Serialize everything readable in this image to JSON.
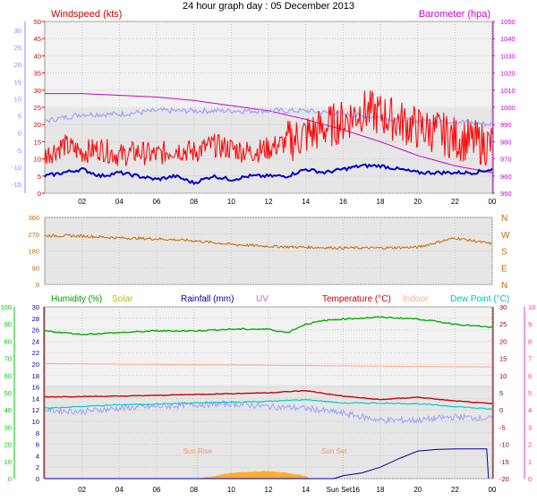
{
  "title": "24 hour graph day : 05 December 2013",
  "colors": {
    "windspeed": "#ff0000",
    "windgust": "#ff0000",
    "windavg": "#0000cc",
    "barometer": "#cc00cc",
    "temp_axis_line": "#a0a0ff",
    "direction": "#cc6600",
    "humidity": "#00b000",
    "solar": "#cccc00",
    "rainfall": "#000099",
    "uv": "#cc66cc",
    "temperature": "#cc0000",
    "indoor": "#ffaa88",
    "dewpoint": "#00cccc",
    "chill": "#a0a0ff",
    "solar_fill": "#ffaa33",
    "axis_left_blue": "#8888ff",
    "axis_green": "#00cc00",
    "axis_pink": "#ff3399",
    "axis_right_red": "#990000",
    "plot_bg": "#e6e6e6"
  },
  "chart_data": [
    {
      "type": "line",
      "panel": "wind-barometer",
      "labels": {
        "left": "Windspeed (kts)",
        "right": "Barometer (hpa)"
      },
      "x_ticks": [
        "02",
        "04",
        "06",
        "08",
        "10",
        "12",
        "14",
        "16",
        "18",
        "20",
        "22",
        "00"
      ],
      "y_left": {
        "ticks": [
          "0",
          "5",
          "10",
          "15",
          "20",
          "25",
          "30",
          "35",
          "40",
          "45",
          "50"
        ],
        "ylim": [
          0,
          50
        ]
      },
      "y_left_outer": {
        "ticks": [
          "-15",
          "-10",
          "-5",
          "0",
          "5",
          "10",
          "15",
          "20",
          "25",
          "30"
        ]
      },
      "y_right": {
        "ticks": [
          "950",
          "960",
          "970",
          "980",
          "990",
          "1000",
          "1010",
          "1020",
          "1030",
          "1040",
          "1050"
        ],
        "ylim": [
          950,
          1050
        ]
      },
      "series": [
        {
          "key": "gust",
          "x": [
            0,
            1,
            2,
            3,
            4,
            5,
            6,
            7,
            8,
            9,
            10,
            11,
            12,
            13,
            14,
            15,
            16,
            17,
            18,
            19,
            20,
            21,
            22,
            23,
            24
          ],
          "values": [
            11,
            14,
            12,
            13,
            11,
            12,
            11,
            13,
            12,
            14,
            13,
            12,
            13,
            15,
            17,
            19,
            21,
            24,
            23,
            21,
            19,
            18,
            16,
            15,
            14
          ]
        },
        {
          "key": "avg",
          "x": [
            0,
            1,
            2,
            3,
            4,
            5,
            6,
            7,
            8,
            9,
            10,
            11,
            12,
            13,
            14,
            15,
            16,
            17,
            18,
            19,
            20,
            21,
            22,
            23,
            24
          ],
          "values": [
            5,
            6,
            7,
            5,
            6,
            5,
            4,
            5,
            3,
            5,
            4,
            5,
            5,
            5,
            7,
            6,
            7,
            8,
            8,
            7,
            6,
            6,
            6,
            6,
            7
          ]
        },
        {
          "key": "baro",
          "x": [
            0,
            2,
            4,
            6,
            8,
            10,
            12,
            14,
            16,
            18,
            20,
            22,
            24
          ],
          "values": [
            1008,
            1008,
            1007,
            1006,
            1004,
            1001,
            998,
            993,
            987,
            980,
            972,
            966,
            962
          ]
        },
        {
          "key": "chill",
          "x": [
            0,
            2,
            4,
            6,
            8,
            10,
            12,
            14,
            16,
            18,
            20,
            22,
            24
          ],
          "values": [
            21,
            23,
            23,
            24,
            24,
            24,
            24,
            24,
            23,
            22,
            21,
            21,
            20
          ]
        }
      ]
    },
    {
      "type": "line",
      "panel": "wind-direction",
      "x_ticks": [
        "02",
        "04",
        "06",
        "08",
        "10",
        "12",
        "14",
        "16",
        "18",
        "20",
        "22",
        "00"
      ],
      "y_left": {
        "ticks": [
          "0",
          "90",
          "180",
          "270",
          "360"
        ],
        "ylim": [
          0,
          360
        ]
      },
      "y_right": {
        "ticks": [
          "N",
          "W",
          "S",
          "E",
          "N"
        ]
      },
      "series": [
        {
          "key": "dir",
          "x": [
            0,
            2,
            4,
            6,
            8,
            10,
            12,
            14,
            16,
            18,
            20,
            22,
            24
          ],
          "values": [
            262,
            260,
            250,
            245,
            235,
            215,
            205,
            200,
            196,
            196,
            200,
            250,
            218
          ]
        }
      ]
    },
    {
      "type": "line",
      "panel": "temp-humidity",
      "labels": {
        "humidity": "Humidity (%)",
        "solar": "Solar",
        "rainfall": "Rainfall (mm)",
        "uv": "UV",
        "temperature": "Temperature (°C)",
        "indoor": "Indoor",
        "dewpoint": "Dew Point (°C)",
        "sunrise": "Sun Rise",
        "sunset": "Sun Set"
      },
      "x_ticks": [
        "02",
        "04",
        "06",
        "08",
        "10",
        "12",
        "14",
        "Sun Set16",
        "18",
        "20",
        "22",
        "00"
      ],
      "y_humidity": {
        "ticks": [
          "0",
          "10",
          "20",
          "30",
          "40",
          "50",
          "60",
          "70",
          "80",
          "90",
          "100"
        ],
        "ylim": [
          0,
          100
        ]
      },
      "y_solar": {
        "ticks": [
          "0",
          "2",
          "4",
          "6",
          "8",
          "10",
          "12",
          "14",
          "16",
          "18",
          "20",
          "22",
          "24",
          "26",
          "28",
          "30"
        ],
        "ylim": [
          0,
          30
        ]
      },
      "y_temp": {
        "ticks": [
          "-20",
          "-15",
          "-10",
          "-5",
          "0",
          "5",
          "10",
          "15",
          "20",
          "25",
          "30"
        ],
        "ylim": [
          -20,
          30
        ]
      },
      "y_uv": {
        "ticks": [
          "0",
          "1",
          "2",
          "3",
          "4",
          "5",
          "6",
          "7",
          "8",
          "9",
          "10"
        ],
        "ylim": [
          0,
          10
        ]
      },
      "series": [
        {
          "key": "humidity",
          "x": [
            0,
            2,
            4,
            6,
            8,
            10,
            12,
            13,
            14,
            15,
            16,
            18,
            20,
            22,
            23,
            24
          ],
          "values": [
            86,
            84,
            85,
            86,
            86,
            87,
            87,
            85,
            90,
            92,
            93,
            94,
            93,
            90,
            89,
            88
          ]
        },
        {
          "key": "temperature",
          "x": [
            0,
            4,
            8,
            12,
            14,
            16,
            18,
            20,
            22,
            24
          ],
          "values": [
            3.8,
            4,
            4.5,
            5,
            5.6,
            4,
            3,
            3.7,
            2.6,
            1.8
          ]
        },
        {
          "key": "indoor",
          "x": [
            0,
            24
          ],
          "values": [
            13.5,
            12.5
          ]
        },
        {
          "key": "dewpoint",
          "x": [
            0,
            4,
            8,
            12,
            14,
            16,
            18,
            20,
            22,
            24
          ],
          "values": [
            0.5,
            1.5,
            2,
            2.5,
            3,
            2,
            2,
            1.8,
            1,
            0.2
          ]
        },
        {
          "key": "chill",
          "x": [
            0,
            2,
            4,
            6,
            8,
            10,
            12,
            14,
            16,
            18,
            20,
            22,
            24
          ],
          "values": [
            0,
            -0.5,
            0.5,
            1,
            1.5,
            1.8,
            1,
            0.5,
            -1,
            -3,
            -3,
            -2,
            -2.5
          ]
        },
        {
          "key": "rainfall",
          "x": [
            0,
            15.5,
            16,
            17,
            18,
            19,
            20,
            21,
            22,
            23,
            23.7,
            23.8
          ],
          "values": [
            0,
            0,
            0.5,
            1,
            2,
            3.5,
            4.8,
            5.1,
            5.2,
            5.2,
            5.2,
            0
          ]
        },
        {
          "key": "solar",
          "x": [
            8.2,
            9,
            10,
            11,
            12,
            13,
            14,
            14.2
          ],
          "values": [
            0,
            0.4,
            1.0,
            1.2,
            1.3,
            1.0,
            0.5,
            0
          ]
        }
      ]
    }
  ]
}
